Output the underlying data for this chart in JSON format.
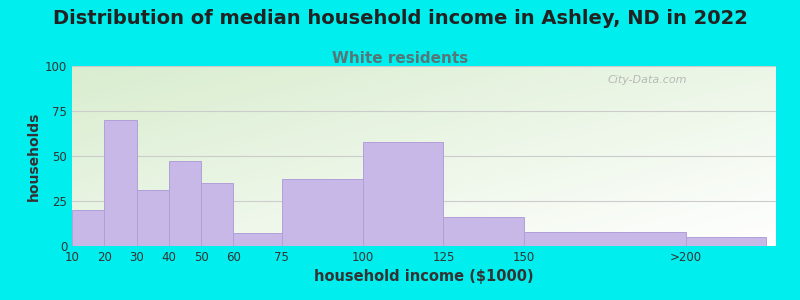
{
  "title": "Distribution of median household income in Ashley, ND in 2022",
  "subtitle": "White residents",
  "xlabel": "household income ($1000)",
  "ylabel": "households",
  "bar_labels": [
    "10",
    "20",
    "30",
    "40",
    "50",
    "60",
    "75",
    "100",
    "125",
    "150",
    ">200"
  ],
  "bar_values": [
    20,
    70,
    31,
    47,
    35,
    7,
    37,
    58,
    16,
    8,
    5
  ],
  "bar_color": "#c8b8e8",
  "bar_edge_color": "#b0a0d8",
  "ylim": [
    0,
    100
  ],
  "yticks": [
    0,
    25,
    50,
    75,
    100
  ],
  "bg_color": "#00EEEE",
  "plot_bg_top_left": "#d8eecf",
  "plot_bg_bottom_right": "#ffffff",
  "title_fontsize": 14,
  "title_color": "#222222",
  "subtitle_fontsize": 11,
  "subtitle_color": "#557777",
  "watermark": "City-Data.com",
  "left_edges": [
    10,
    20,
    30,
    40,
    50,
    60,
    75,
    100,
    125,
    150,
    200
  ],
  "right_edges": [
    20,
    30,
    40,
    50,
    60,
    75,
    100,
    125,
    150,
    200,
    225
  ],
  "xlim_left": 10,
  "xlim_right": 228
}
